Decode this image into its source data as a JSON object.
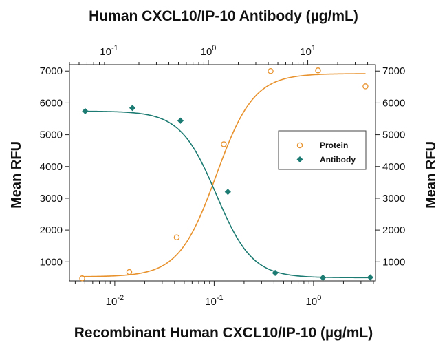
{
  "chart_data": {
    "type": "scatter",
    "title": "",
    "top_xlabel": "Human CXCL10/IP-10 Antibody (µg/mL)",
    "xlabel": "Recombinant Human CXCL10/IP-10 (µg/mL)",
    "ylabel": "Mean RFU",
    "ylabel_right": "Mean RFU",
    "bottom_xscale": "log",
    "bottom_xlim": [
      0.0035,
      4.2
    ],
    "bottom_xticks": [
      {
        "base": "10",
        "exp": "-2",
        "value": 0.01
      },
      {
        "base": "10",
        "exp": "-1",
        "value": 0.1
      },
      {
        "base": "10",
        "exp": "0",
        "value": 1
      }
    ],
    "top_xscale": "log",
    "top_xlim": [
      0.04,
      48
    ],
    "top_xticks": [
      {
        "base": "10",
        "exp": "-1",
        "value": 0.1
      },
      {
        "base": "10",
        "exp": "0",
        "value": 1
      },
      {
        "base": "10",
        "exp": "1",
        "value": 10
      }
    ],
    "ylim": [
      400,
      7200
    ],
    "yticks": [
      "1000",
      "2000",
      "3000",
      "4000",
      "5000",
      "6000",
      "7000"
    ],
    "grid": false,
    "legend_position": "right",
    "series": [
      {
        "name": "Protein",
        "axis": "bottom",
        "marker": "open-circle",
        "color": "#e8922d",
        "x": [
          0.0047,
          0.014,
          0.042,
          0.125,
          0.37,
          1.11,
          3.33
        ],
        "y": [
          480,
          680,
          1770,
          4700,
          7000,
          7020,
          6520
        ],
        "fit": {
          "bottom": 530,
          "top": 6920,
          "ec50": 0.105,
          "hill": 2.3
        }
      },
      {
        "name": "Antibody",
        "axis": "top",
        "marker": "filled-diamond",
        "color": "#1c7b72",
        "x": [
          0.0576,
          0.172,
          0.524,
          1.57,
          4.7,
          14.2,
          42.5
        ],
        "y": [
          5740,
          5840,
          5440,
          3200,
          650,
          500,
          510
        ],
        "fit": {
          "bottom": 500,
          "top": 5740,
          "ec50": 1.2,
          "hill": 2.4
        }
      }
    ]
  }
}
